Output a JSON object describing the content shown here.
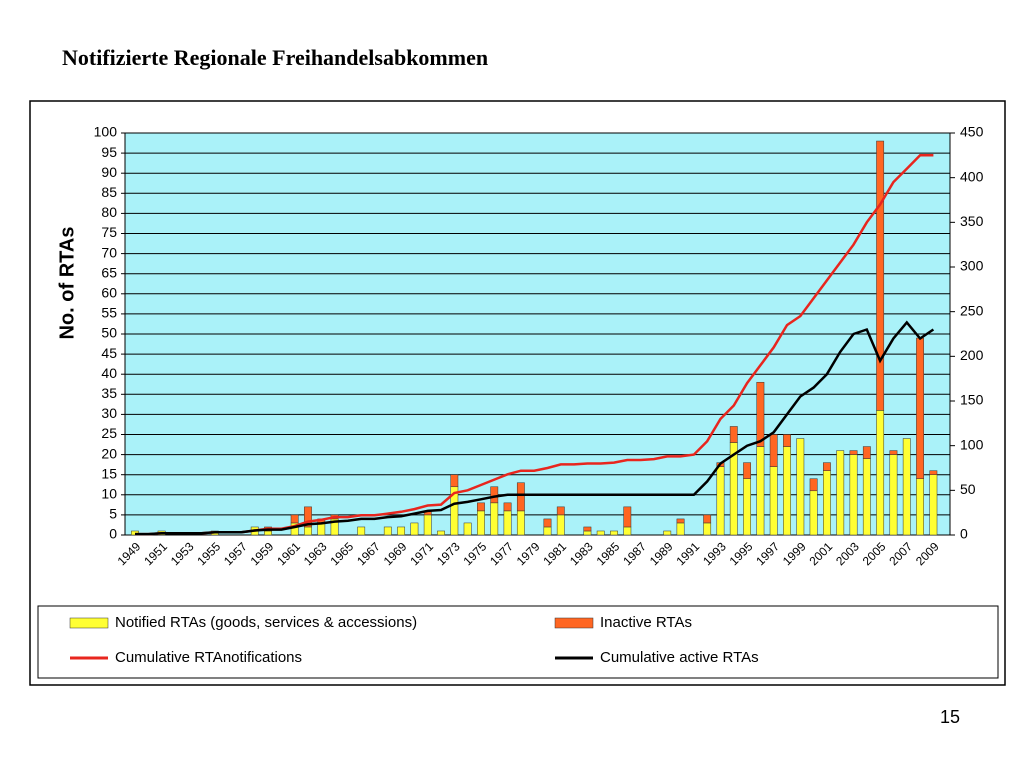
{
  "title": "Notifizierte Regionale Freihandelsabkommen",
  "page_number": "15",
  "chart_data": {
    "type": "bar",
    "stacked": true,
    "ylabel": "No. of RTAs",
    "categories": [
      "1949",
      null,
      "1951",
      null,
      "1953",
      null,
      "1955",
      null,
      "1957",
      null,
      "1959",
      null,
      "1961",
      null,
      "1963",
      null,
      "1965",
      null,
      "1967",
      null,
      "1969",
      null,
      "1971",
      null,
      "1973",
      null,
      "1975",
      null,
      "1977",
      null,
      "1979",
      null,
      "1981",
      null,
      "1983",
      null,
      "1985",
      null,
      "1987",
      null,
      "1989",
      null,
      "1991",
      null,
      "1993",
      null,
      "1995",
      null,
      "1997",
      null,
      "1999",
      null,
      "2001",
      null,
      "2003",
      null,
      "2005",
      null,
      "2007",
      null,
      "2009"
    ],
    "series": [
      {
        "name": "Notified RTAs (goods, services & accessions)",
        "type": "bar",
        "color": "#ffff33",
        "values": [
          1,
          0,
          1,
          0,
          0,
          0,
          1,
          0,
          0,
          2,
          1,
          0,
          3,
          2,
          3,
          4,
          0,
          2,
          0,
          2,
          2,
          3,
          5,
          1,
          12,
          3,
          6,
          8,
          6,
          6,
          0,
          2,
          5,
          0,
          1,
          1,
          1,
          2,
          0,
          0,
          1,
          3,
          0,
          3,
          17,
          23,
          14,
          22,
          17,
          22,
          24,
          11,
          16,
          21,
          20,
          19,
          31,
          20,
          24,
          14,
          15
        ]
      },
      {
        "name": "Inactive RTAs",
        "type": "bar",
        "color": "#ff6622",
        "values": [
          0,
          0,
          0,
          0,
          0,
          0,
          0,
          0,
          0,
          0,
          1,
          0,
          2,
          5,
          1,
          1,
          0,
          0,
          0,
          0,
          0,
          0,
          1,
          0,
          3,
          0,
          2,
          4,
          2,
          7,
          0,
          2,
          2,
          0,
          1,
          0,
          0,
          5,
          0,
          0,
          0,
          1,
          0,
          2,
          1,
          4,
          4,
          16,
          8,
          3,
          0,
          3,
          2,
          0,
          1,
          3,
          67,
          1,
          0,
          35,
          1
        ]
      },
      {
        "name": "Cumulative RTAnotifications",
        "type": "line",
        "axis": "y2",
        "color": "#e8261e",
        "values": [
          1,
          1,
          2,
          2,
          2,
          2,
          3,
          3,
          3,
          5,
          7,
          7,
          10,
          15,
          17,
          20,
          20,
          22,
          22,
          24,
          26,
          29,
          33,
          34,
          47,
          50,
          56,
          62,
          68,
          72,
          72,
          75,
          79,
          79,
          80,
          80,
          81,
          84,
          84,
          85,
          88,
          88,
          90,
          105,
          130,
          145,
          170,
          190,
          210,
          235,
          245,
          265,
          285,
          305,
          325,
          350,
          370,
          395,
          410,
          425,
          425
        ]
      },
      {
        "name": "Cumulative active RTAs",
        "type": "line",
        "axis": "y2",
        "color": "#000000",
        "values": [
          1,
          1,
          2,
          2,
          2,
          2,
          3,
          3,
          3,
          5,
          6,
          6,
          9,
          12,
          13,
          15,
          16,
          18,
          18,
          20,
          21,
          24,
          27,
          28,
          35,
          37,
          40,
          43,
          45,
          45,
          45,
          45,
          45,
          45,
          45,
          45,
          45,
          45,
          45,
          45,
          45,
          45,
          45,
          60,
          80,
          90,
          100,
          105,
          115,
          135,
          155,
          165,
          180,
          205,
          225,
          230,
          195,
          220,
          238,
          220,
          230
        ]
      }
    ],
    "ylim": [
      0,
      100
    ],
    "yticks": [
      0,
      5,
      10,
      15,
      20,
      25,
      30,
      35,
      40,
      45,
      50,
      55,
      60,
      65,
      70,
      75,
      80,
      85,
      90,
      95,
      100
    ],
    "y2lim": [
      0,
      450
    ],
    "y2ticks": [
      0,
      50,
      100,
      150,
      200,
      250,
      300,
      350,
      400,
      450
    ],
    "grid": true,
    "plot_background": "#aaf2f9"
  }
}
